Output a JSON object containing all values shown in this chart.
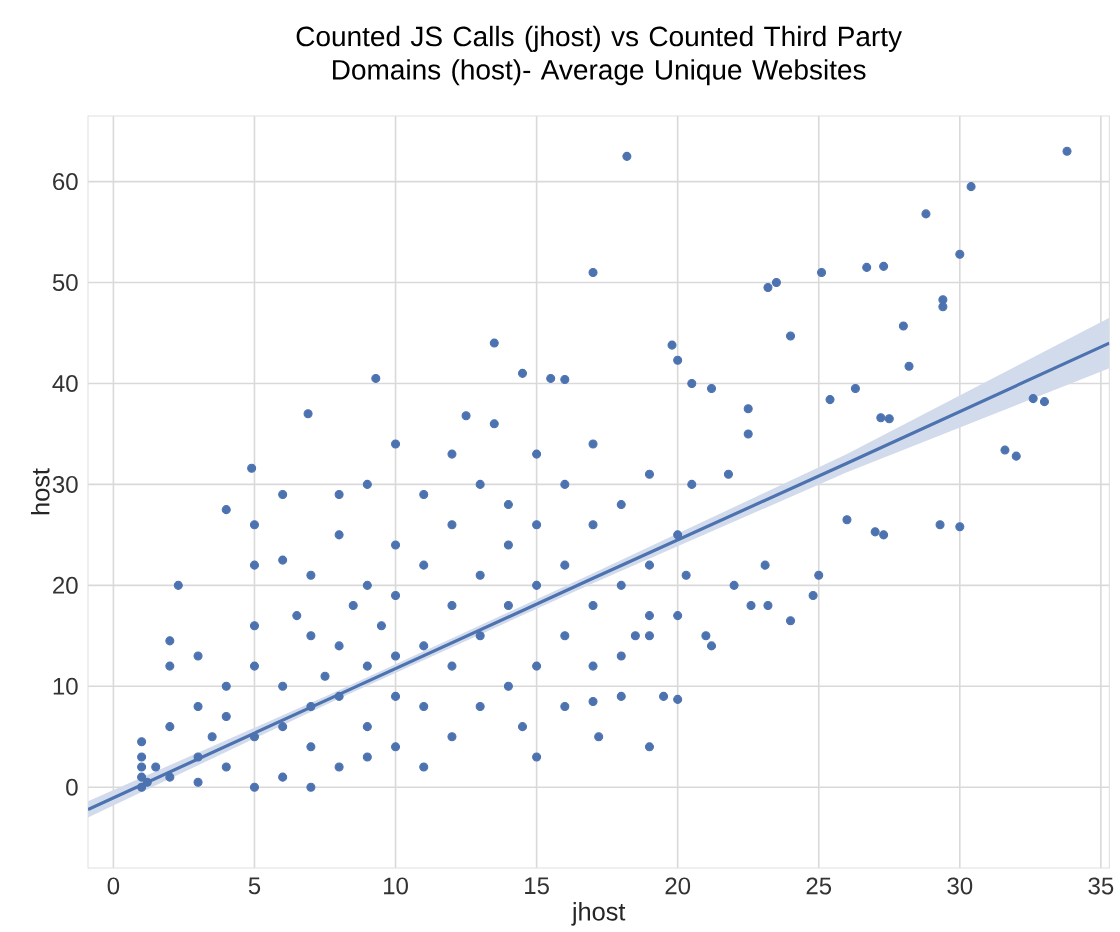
{
  "chart_data": {
    "type": "scatter",
    "title": "Counted JS Calls (jhost) vs Counted Third Party Domains (host)- Average Unique Websites",
    "xlabel": "jhost",
    "ylabel": "host",
    "xlim": [
      -0.9,
      35.3
    ],
    "ylim": [
      -8,
      66.5
    ],
    "xticks": [
      0,
      5,
      10,
      15,
      20,
      25,
      30,
      35
    ],
    "yticks": [
      0,
      10,
      20,
      30,
      40,
      50,
      60
    ],
    "grid": true,
    "series": [
      {
        "marker": "circle",
        "color": "#4c72b0",
        "x": [
          18.2,
          33.8,
          30.4,
          28.8,
          30,
          23.5,
          23.2,
          26.7,
          25.1,
          27.3,
          17,
          28,
          24,
          29.4,
          29.4,
          26.3,
          28.2,
          14.5,
          20,
          20.5,
          22.5,
          21.2,
          22.5,
          25.4,
          27.5,
          27.2,
          32.6,
          33,
          31.6,
          32,
          29.3,
          30,
          27,
          27.3,
          26,
          25,
          24.8,
          23.1,
          23.2,
          24,
          13.5,
          15.5,
          6.9,
          16,
          12.5,
          4.9,
          2.3,
          9.3,
          19.8,
          20.5,
          21.8,
          20,
          19.5,
          18,
          17,
          21,
          21.2,
          22.6,
          22,
          17.2,
          19,
          18.5,
          20.3,
          1,
          1,
          1,
          1,
          1,
          1.2,
          1.5,
          2,
          2,
          2,
          2,
          3,
          3,
          3,
          3,
          3.5,
          4,
          4,
          4,
          4,
          5,
          5,
          5,
          5,
          5,
          5,
          6,
          6,
          6,
          6,
          6,
          6.5,
          7,
          7,
          7,
          7,
          7,
          7.5,
          8,
          8,
          8,
          8,
          8,
          8.5,
          9,
          9,
          9,
          9,
          9,
          9.5,
          10,
          10,
          10,
          10,
          10,
          10,
          11,
          11,
          11,
          11,
          11,
          12,
          12,
          12,
          12,
          12,
          13,
          13,
          13,
          13,
          13.5,
          14,
          14,
          14,
          14,
          14.5,
          15,
          15,
          15,
          15,
          15,
          16,
          16,
          16,
          16,
          17,
          17,
          17,
          17,
          18,
          18,
          18,
          19,
          19,
          19,
          19,
          20,
          20
        ],
        "values": [
          62.5,
          63,
          59.5,
          56.8,
          52.8,
          50,
          49.5,
          51.5,
          51,
          51.6,
          51,
          45.7,
          44.7,
          48.3,
          47.6,
          39.5,
          41.7,
          41,
          42.3,
          40,
          37.5,
          39.5,
          35,
          38.4,
          36.5,
          36.6,
          38.5,
          38.2,
          33.4,
          32.8,
          26,
          25.8,
          25.3,
          25,
          26.5,
          21,
          19,
          22,
          18,
          16.5,
          44,
          40.5,
          37,
          40.4,
          36.8,
          31.6,
          20,
          40.5,
          43.8,
          30,
          31,
          8.7,
          9,
          9,
          8.5,
          15,
          14,
          18,
          20,
          5,
          17,
          15,
          21,
          0,
          1,
          2,
          3,
          4.5,
          0.5,
          2,
          1,
          6,
          12,
          14.5,
          3,
          8,
          13,
          0.5,
          5,
          2,
          7,
          10,
          27.5,
          0,
          5,
          12,
          16,
          22,
          26,
          1,
          6,
          10,
          22.5,
          29,
          17,
          0,
          4,
          8,
          15,
          21,
          11,
          2,
          9,
          14,
          25,
          29,
          18,
          3,
          6,
          12,
          20,
          30,
          16,
          4,
          9,
          13,
          19,
          24,
          34,
          2,
          8,
          14,
          22,
          29,
          5,
          12,
          18,
          26,
          33,
          8,
          15,
          21,
          30,
          36,
          10,
          18,
          24,
          28,
          6,
          3,
          12,
          20,
          26,
          33,
          8,
          15,
          22,
          30,
          12,
          18,
          26,
          34,
          13,
          20,
          28,
          15,
          22,
          31,
          4,
          17,
          25
        ]
      },
      {
        "type": "line",
        "marker": "none",
        "color": "#4c72b0",
        "x": [
          -0.9,
          8,
          17,
          26,
          35.3
        ],
        "values": [
          -2.2,
          9.2,
          20.7,
          32.1,
          44.0
        ],
        "lower": [
          -3.0,
          8.8,
          20.2,
          31.2,
          41.5
        ],
        "upper": [
          -1.4,
          9.6,
          21.2,
          33.0,
          46.5
        ]
      }
    ]
  }
}
